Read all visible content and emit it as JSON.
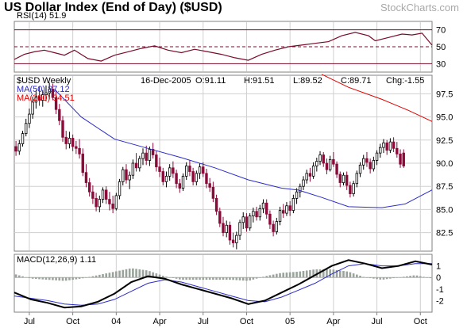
{
  "chart_data": {
    "type": "candlestick",
    "title": "US Dollar Index (End of Day) ($USD)",
    "brand": "StockCharts.com",
    "symbol_label": "$USD Weekly",
    "header": {
      "date": "16-Dec-2005",
      "open": "O:91.11",
      "high": "H:91.51",
      "low": "L:89.52",
      "close": "C:89.71",
      "change": "Chg:-1.55"
    },
    "x_tick_labels": [
      "Jul",
      "Oct",
      "04",
      "Apr",
      "Jul",
      "Oct",
      "05",
      "Apr",
      "Jul",
      "Oct"
    ],
    "x_range": [
      0,
      125
    ],
    "x_ticks": [
      4.5,
      17.5,
      30.5,
      43.5,
      56.5,
      69.5,
      82.5,
      95.5,
      108.5,
      121.5
    ],
    "price": {
      "ylim": [
        80.5,
        99.5
      ],
      "y_ticks": [
        82.5,
        85.0,
        87.5,
        90.0,
        92.5,
        95.0,
        97.5
      ],
      "y_tick_labels": [
        "82.5",
        "85.0",
        "87.5",
        "90.0",
        "92.5",
        "95.0",
        "97.5"
      ],
      "ohlc": [
        [
          91.8,
          92.4,
          90.8,
          91.3
        ],
        [
          91.3,
          92.5,
          90.9,
          92.1
        ],
        [
          92.1,
          93.5,
          91.8,
          93.2
        ],
        [
          93.2,
          94.8,
          92.9,
          94.3
        ],
        [
          94.3,
          95.9,
          93.8,
          95.3
        ],
        [
          95.3,
          97.2,
          94.8,
          96.6
        ],
        [
          96.6,
          97.9,
          95.9,
          97.2
        ],
        [
          97.2,
          98.3,
          96.2,
          96.8
        ],
        [
          96.8,
          97.9,
          96.1,
          97.4
        ],
        [
          97.4,
          98.4,
          96.7,
          97.6
        ],
        [
          97.6,
          98.7,
          96.9,
          98.0
        ],
        [
          98.0,
          98.6,
          96.8,
          97.1
        ],
        [
          97.1,
          97.9,
          95.3,
          95.8
        ],
        [
          95.8,
          96.4,
          94.1,
          94.6
        ],
        [
          94.6,
          95.1,
          92.3,
          92.8
        ],
        [
          92.8,
          93.5,
          91.5,
          92.1
        ],
        [
          92.1,
          93.4,
          91.6,
          92.7
        ],
        [
          92.7,
          93.1,
          91.3,
          91.8
        ],
        [
          91.8,
          92.4,
          91.0,
          91.6
        ],
        [
          91.6,
          92.6,
          90.5,
          91.0
        ],
        [
          91.0,
          91.6,
          88.6,
          89.0
        ],
        [
          89.0,
          89.9,
          87.4,
          87.9
        ],
        [
          87.9,
          88.4,
          86.4,
          86.9
        ],
        [
          86.9,
          87.6,
          85.6,
          86.2
        ],
        [
          86.2,
          86.8,
          84.8,
          85.3
        ],
        [
          85.3,
          86.5,
          84.7,
          86.1
        ],
        [
          86.1,
          87.4,
          85.7,
          87.1
        ],
        [
          87.1,
          87.5,
          85.6,
          86.1
        ],
        [
          86.1,
          86.9,
          84.9,
          85.6
        ],
        [
          85.6,
          86.5,
          84.6,
          85.1
        ],
        [
          85.1,
          86.8,
          84.9,
          86.5
        ],
        [
          86.5,
          88.3,
          86.1,
          88.0
        ],
        [
          88.0,
          89.6,
          87.6,
          89.3
        ],
        [
          89.3,
          89.9,
          87.8,
          88.2
        ],
        [
          88.2,
          89.1,
          87.2,
          88.7
        ],
        [
          88.7,
          90.4,
          88.3,
          90.0
        ],
        [
          90.0,
          91.1,
          89.1,
          89.5
        ],
        [
          89.5,
          90.8,
          89.1,
          90.5
        ],
        [
          90.5,
          91.6,
          89.8,
          91.1
        ],
        [
          91.1,
          91.9,
          89.8,
          90.3
        ],
        [
          90.3,
          91.8,
          89.7,
          91.5
        ],
        [
          91.5,
          92.2,
          90.5,
          90.9
        ],
        [
          90.9,
          91.3,
          89.1,
          89.6
        ],
        [
          89.6,
          90.6,
          88.5,
          89.1
        ],
        [
          89.1,
          89.5,
          87.6,
          88.0
        ],
        [
          88.0,
          89.1,
          87.4,
          88.6
        ],
        [
          88.6,
          89.9,
          88.1,
          89.5
        ],
        [
          89.5,
          90.2,
          88.4,
          88.9
        ],
        [
          88.9,
          89.3,
          87.3,
          87.8
        ],
        [
          87.8,
          88.3,
          86.8,
          87.3
        ],
        [
          87.3,
          88.9,
          87.0,
          88.6
        ],
        [
          88.6,
          90.1,
          88.2,
          89.7
        ],
        [
          89.7,
          90.3,
          88.6,
          89.1
        ],
        [
          89.1,
          89.5,
          87.6,
          88.0
        ],
        [
          88.0,
          89.2,
          87.6,
          88.9
        ],
        [
          88.9,
          90.0,
          88.3,
          89.6
        ],
        [
          89.6,
          90.1,
          88.5,
          88.9
        ],
        [
          88.9,
          89.4,
          87.3,
          87.8
        ],
        [
          87.8,
          88.4,
          86.9,
          87.4
        ],
        [
          87.4,
          88.0,
          85.8,
          86.2
        ],
        [
          86.2,
          86.6,
          84.4,
          84.8
        ],
        [
          84.8,
          85.2,
          83.1,
          83.5
        ],
        [
          83.5,
          84.2,
          82.1,
          82.5
        ],
        [
          82.5,
          83.8,
          82.0,
          83.3
        ],
        [
          83.3,
          83.7,
          81.2,
          81.7
        ],
        [
          81.7,
          82.5,
          80.9,
          81.4
        ],
        [
          81.4,
          82.6,
          80.7,
          82.2
        ],
        [
          82.2,
          83.9,
          81.7,
          83.6
        ],
        [
          83.6,
          84.7,
          82.9,
          84.2
        ],
        [
          84.2,
          84.6,
          82.6,
          83.0
        ],
        [
          83.0,
          84.6,
          82.7,
          84.3
        ],
        [
          84.3,
          85.2,
          83.6,
          84.8
        ],
        [
          84.8,
          85.3,
          83.8,
          84.2
        ],
        [
          84.2,
          85.5,
          83.8,
          85.1
        ],
        [
          85.1,
          86.1,
          84.6,
          85.7
        ],
        [
          85.7,
          86.1,
          84.0,
          84.5
        ],
        [
          84.5,
          84.9,
          82.9,
          83.4
        ],
        [
          83.4,
          83.8,
          82.1,
          82.6
        ],
        [
          82.6,
          84.1,
          82.3,
          83.7
        ],
        [
          83.7,
          85.3,
          83.3,
          84.9
        ],
        [
          84.9,
          85.6,
          84.1,
          84.6
        ],
        [
          84.6,
          85.8,
          84.3,
          85.4
        ],
        [
          85.4,
          85.9,
          84.3,
          84.9
        ],
        [
          84.9,
          86.6,
          84.6,
          86.2
        ],
        [
          86.2,
          87.3,
          85.6,
          86.9
        ],
        [
          86.9,
          87.8,
          86.3,
          87.5
        ],
        [
          87.5,
          88.6,
          87.1,
          88.2
        ],
        [
          88.2,
          89.3,
          87.8,
          88.9
        ],
        [
          88.9,
          89.5,
          88.0,
          88.6
        ],
        [
          88.6,
          90.1,
          88.3,
          89.7
        ],
        [
          89.7,
          90.6,
          89.1,
          90.2
        ],
        [
          90.2,
          91.3,
          89.8,
          90.9
        ],
        [
          90.9,
          91.2,
          89.6,
          90.0
        ],
        [
          90.0,
          90.5,
          88.8,
          89.3
        ],
        [
          89.3,
          90.8,
          89.1,
          90.4
        ],
        [
          90.4,
          91.2,
          89.6,
          89.9
        ],
        [
          89.9,
          90.2,
          88.4,
          88.8
        ],
        [
          88.8,
          89.1,
          87.4,
          87.9
        ],
        [
          87.9,
          89.0,
          87.6,
          88.7
        ],
        [
          88.7,
          89.1,
          87.1,
          87.6
        ],
        [
          87.6,
          88.0,
          86.3,
          86.7
        ],
        [
          86.7,
          88.1,
          86.4,
          87.8
        ],
        [
          87.8,
          89.2,
          87.4,
          88.9
        ],
        [
          88.9,
          90.1,
          88.5,
          89.8
        ],
        [
          89.8,
          90.9,
          89.3,
          90.5
        ],
        [
          90.5,
          91.2,
          89.6,
          90.1
        ],
        [
          90.1,
          90.5,
          88.9,
          89.4
        ],
        [
          89.4,
          90.7,
          89.1,
          90.3
        ],
        [
          90.3,
          91.4,
          89.8,
          91.1
        ],
        [
          91.1,
          92.1,
          90.6,
          91.7
        ],
        [
          91.7,
          92.6,
          91.1,
          92.2
        ],
        [
          92.2,
          92.5,
          90.9,
          91.4
        ],
        [
          91.4,
          92.7,
          91.1,
          92.3
        ],
        [
          92.3,
          92.8,
          91.2,
          91.6
        ],
        [
          91.6,
          92.3,
          90.6,
          91.0
        ],
        [
          91.0,
          91.5,
          89.5,
          89.9
        ],
        [
          91.1,
          91.5,
          89.5,
          89.7
        ]
      ],
      "ma50": {
        "name": "MA(50)",
        "label": "MA(50) 87.12",
        "color": "#2b2bc8",
        "x": [
          12,
          20,
          30,
          40,
          50,
          60,
          70,
          80,
          85,
          92,
          100,
          110,
          117,
          125
        ],
        "y": [
          98.0,
          95.0,
          92.6,
          91.6,
          90.6,
          89.5,
          88.2,
          87.3,
          87.1,
          86.3,
          85.3,
          85.2,
          85.6,
          87.12
        ]
      },
      "ma200": {
        "name": "MA(200)",
        "label": "MA(200) 94.51",
        "color": "#e00000",
        "x": [
          92,
          100,
          110,
          118,
          125
        ],
        "y": [
          99.6,
          98.2,
          96.9,
          95.7,
          94.51
        ]
      }
    },
    "rsi": {
      "label": "RSI(14) 51.9",
      "ylim": [
        20,
        80
      ],
      "levels": [
        30,
        50,
        70
      ],
      "y_ticks": [
        30,
        50,
        70
      ],
      "y_tick_labels": [
        "30",
        "50",
        "70"
      ],
      "x": [
        0,
        3,
        6,
        9,
        12,
        15,
        18,
        22,
        26,
        30,
        34,
        38,
        42,
        46,
        50,
        54,
        58,
        62,
        66,
        70,
        74,
        78,
        82,
        86,
        90,
        94,
        98,
        102,
        106,
        108,
        112,
        116,
        119,
        122,
        125
      ],
      "values": [
        35,
        41,
        44,
        46,
        43,
        40,
        46,
        36,
        33,
        40,
        44,
        48,
        51,
        46,
        43,
        47,
        44,
        41,
        37,
        34,
        41,
        46,
        50,
        52,
        54,
        56,
        63,
        67,
        63,
        57,
        61,
        65,
        64,
        66,
        51.9
      ]
    },
    "macd": {
      "label": "MACD(12,26,9) 1.11",
      "ylim": [
        -3,
        2
      ],
      "y_ticks": [
        1,
        0,
        -1,
        -2
      ],
      "y_tick_labels": [
        "1",
        "0",
        "-1",
        "-2"
      ],
      "x": [
        0,
        5,
        10,
        15,
        20,
        25,
        30,
        35,
        40,
        45,
        50,
        55,
        60,
        65,
        70,
        75,
        80,
        85,
        90,
        95,
        100,
        105,
        110,
        115,
        120,
        125
      ],
      "macd_line": [
        -1.3,
        -1.9,
        -2.2,
        -2.6,
        -2.5,
        -2.1,
        -1.4,
        -0.4,
        0.1,
        -0.1,
        -0.6,
        -1.0,
        -1.4,
        -1.8,
        -2.3,
        -2.0,
        -1.3,
        -0.6,
        0.2,
        1.0,
        1.5,
        1.2,
        0.8,
        1.0,
        1.4,
        1.11
      ],
      "signal_line": [
        -1.6,
        -1.8,
        -2.0,
        -2.3,
        -2.4,
        -2.3,
        -1.9,
        -1.2,
        -0.5,
        -0.2,
        -0.4,
        -0.8,
        -1.2,
        -1.6,
        -2.0,
        -2.1,
        -1.7,
        -1.1,
        -0.5,
        0.3,
        1.0,
        1.2,
        1.0,
        1.0,
        1.2,
        1.2
      ],
      "colors": {
        "macd": "#000000",
        "signal": "#2b2bc8",
        "histogram": "#9aa39c"
      }
    },
    "colors": {
      "candle_up": "#ffffff",
      "candle_down": "#8b0a3a",
      "candle_edge": "#000000",
      "rsi_line": "#7a0a2a",
      "level_line": "#7a0a2a",
      "grid": "#d0d0d0"
    }
  }
}
